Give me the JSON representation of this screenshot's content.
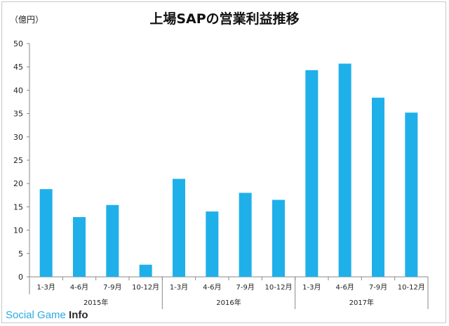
{
  "chart_data": {
    "type": "bar",
    "title": "上場SAPの営業利益推移",
    "unit_label": "（億円）",
    "ylim": [
      0,
      50
    ],
    "yticks": [
      0,
      5,
      10,
      15,
      20,
      25,
      30,
      35,
      40,
      45,
      50
    ],
    "categories": [
      "1-3月",
      "4-6月",
      "7-9月",
      "10-12月",
      "1-3月",
      "4-6月",
      "7-9月",
      "10-12月",
      "1-3月",
      "4-6月",
      "7-9月",
      "10-12月"
    ],
    "groups": [
      {
        "label": "2015年",
        "count": 4
      },
      {
        "label": "2016年",
        "count": 4
      },
      {
        "label": "2017年",
        "count": 4
      }
    ],
    "values": [
      18.8,
      12.8,
      15.4,
      2.6,
      21.0,
      14.0,
      18.0,
      16.5,
      44.3,
      45.7,
      38.4,
      35.2
    ],
    "bar_color": "#1fb0ea",
    "grid": false
  },
  "watermark": {
    "part1": "Social Game ",
    "part2": "Info"
  }
}
